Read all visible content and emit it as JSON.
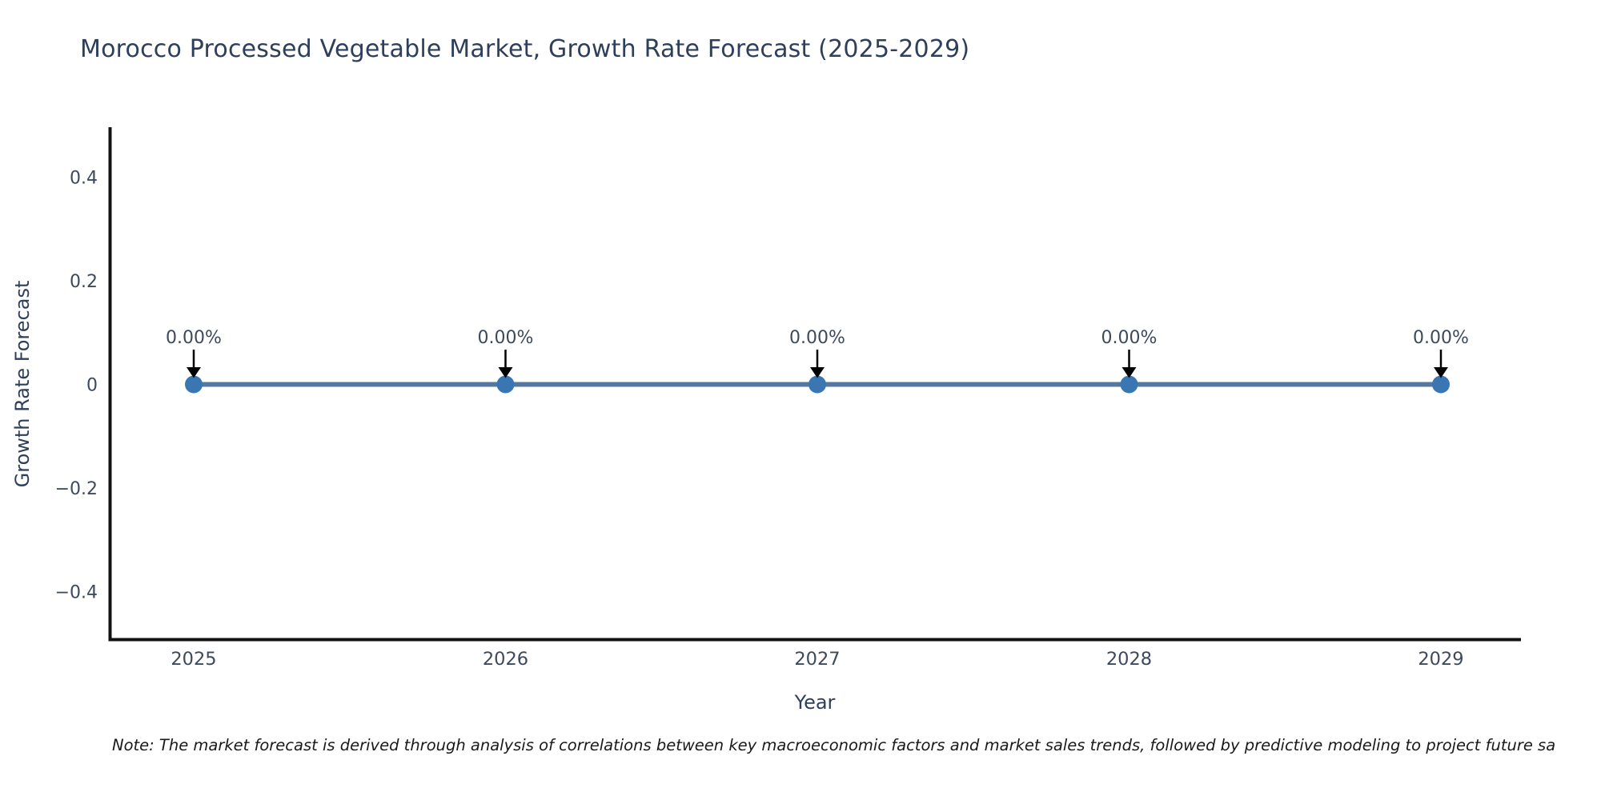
{
  "header": {
    "title": "Morocco Processed Vegetable Market, Growth Rate Forecast (2025-2029)"
  },
  "note": {
    "text": "Note: The market forecast is derived through analysis of correlations between key macroeconomic factors and market sales trends, followed by predictive modeling to project future sa"
  },
  "chart_data": {
    "type": "line",
    "title": "Morocco Processed Vegetable Market, Growth Rate Forecast (2025-2029)",
    "categories": [
      "2025",
      "2026",
      "2027",
      "2028",
      "2029"
    ],
    "series": [
      {
        "name": "Growth Rate Forecast",
        "values": [
          0,
          0,
          0,
          0,
          0
        ]
      }
    ],
    "point_labels": [
      "0.00%",
      "0.00%",
      "0.00%",
      "0.00%",
      "0.00%"
    ],
    "xlabel": "Year",
    "ylabel": "Growth Rate Forecast",
    "yticks": [
      0.4,
      0.2,
      0,
      -0.2,
      -0.4
    ],
    "ytick_labels": [
      "0.4",
      "0.2",
      "0",
      "−0.2",
      "−0.4"
    ],
    "ylim": [
      -0.5,
      0.5
    ],
    "grid": false,
    "legend": false,
    "annotation_style": "label-with-down-arrow",
    "colors": {
      "line": "#54789e",
      "marker": "#3a76b2",
      "axis": "#111111",
      "tick_text": "#3d4a5c",
      "axis_title_text": "#2e3f5c",
      "annotation_text": "#3d4a5c",
      "arrow": "#000000",
      "title_text": "#2e3f5c",
      "note_text": "#1a1a1a",
      "background": "#ffffff"
    }
  }
}
